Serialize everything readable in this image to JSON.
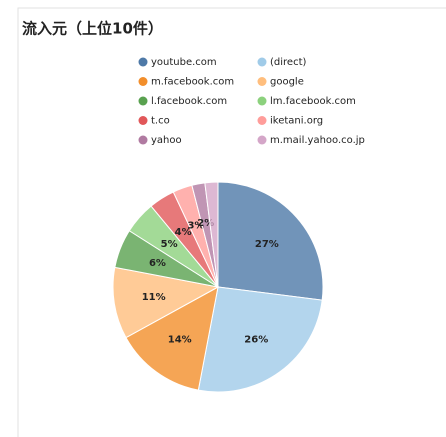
{
  "chart_data": {
    "type": "pie",
    "title": "流入元（上位10件）",
    "categories": [
      "youtube.com",
      "(direct)",
      "m.facebook.com",
      "google",
      "l.facebook.com",
      "lm.facebook.com",
      "t.co",
      "iketani.org",
      "yahoo",
      "m.mail.yahoo.co.jp"
    ],
    "values": [
      27,
      26,
      14,
      11,
      6,
      5,
      4,
      3,
      2,
      2
    ],
    "value_labels": [
      "27%",
      "26%",
      "14%",
      "11%",
      "6%",
      "5%",
      "4%",
      "3%",
      "2%",
      null
    ],
    "colors": [
      "#4e79a7",
      "#a0cbe8",
      "#f28e2b",
      "#ffbe7d",
      "#59a14f",
      "#8cd17d",
      "#e15759",
      "#ff9d9a",
      "#b07aa1",
      "#d4a6c8"
    ],
    "legend": "top"
  }
}
